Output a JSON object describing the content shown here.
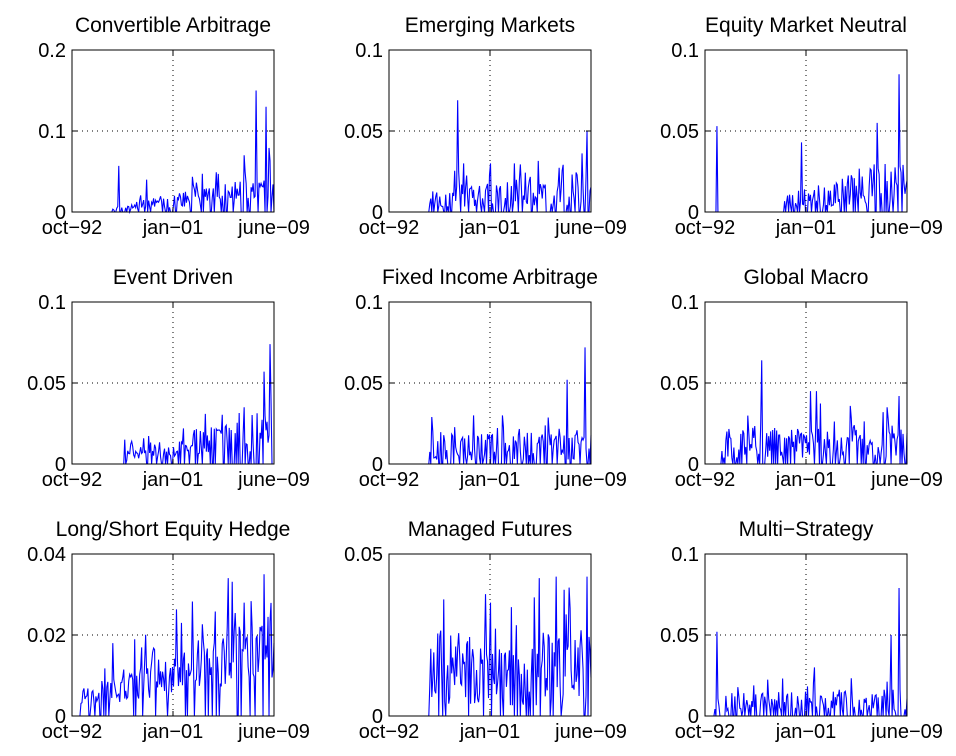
{
  "chart_data": [
    {
      "type": "line",
      "title": "Convertible Arbitrage",
      "xlabel": "",
      "ylabel": "",
      "xticks": [
        "oct−92",
        "jan−01",
        "june−09"
      ],
      "yticks": [
        "0",
        "0.1",
        "0.2"
      ],
      "ylim": [
        0,
        0.2
      ],
      "grid": true,
      "color": "#0000ff",
      "seed": 11,
      "start": 0.2,
      "level0": 0.005,
      "level1": 0.03,
      "amp": 0.6,
      "nzero": 0.35,
      "peaks": [
        [
          0.23,
          0.057
        ],
        [
          0.37,
          0.04
        ],
        [
          0.85,
          0.07
        ],
        [
          0.91,
          0.15
        ],
        [
          0.96,
          0.13
        ]
      ]
    },
    {
      "type": "line",
      "title": "Emerging Markets",
      "xlabel": "",
      "ylabel": "",
      "xticks": [
        "oct−92",
        "jan−01",
        "june−09"
      ],
      "yticks": [
        "0",
        "0.05",
        "0.1"
      ],
      "ylim": [
        0,
        0.1
      ],
      "grid": true,
      "color": "#0000ff",
      "seed": 23,
      "start": 0.2,
      "level0": 0.008,
      "level1": 0.015,
      "amp": 0.7,
      "nzero": 0.3,
      "peaks": [
        [
          0.34,
          0.069
        ],
        [
          0.37,
          0.03
        ],
        [
          0.5,
          0.03
        ],
        [
          0.62,
          0.03
        ],
        [
          0.98,
          0.05
        ]
      ]
    },
    {
      "type": "line",
      "title": "Equity Market Neutral",
      "xlabel": "",
      "ylabel": "",
      "xticks": [
        "oct−92",
        "jan−01",
        "june−09"
      ],
      "yticks": [
        "0",
        "0.05",
        "0.1"
      ],
      "ylim": [
        0,
        0.1
      ],
      "grid": true,
      "color": "#0000ff",
      "seed": 37,
      "start": 0.38,
      "level0": 0.006,
      "level1": 0.02,
      "amp": 0.7,
      "nzero": 0.3,
      "peaks": [
        [
          0.06,
          0.053
        ],
        [
          0.48,
          0.043
        ],
        [
          0.85,
          0.055
        ],
        [
          0.96,
          0.085
        ]
      ]
    },
    {
      "type": "line",
      "title": "Event Driven",
      "xlabel": "",
      "ylabel": "",
      "xticks": [
        "oct−92",
        "jan−01",
        "june−09"
      ],
      "yticks": [
        "0",
        "0.05",
        "0.1"
      ],
      "ylim": [
        0,
        0.1
      ],
      "grid": true,
      "color": "#0000ff",
      "seed": 41,
      "start": 0.26,
      "level0": 0.005,
      "level1": 0.02,
      "amp": 0.6,
      "nzero": 0.35,
      "peaks": [
        [
          0.26,
          0.015
        ],
        [
          0.55,
          0.022
        ],
        [
          0.85,
          0.035
        ],
        [
          0.95,
          0.057
        ],
        [
          0.98,
          0.074
        ]
      ]
    },
    {
      "type": "line",
      "title": "Fixed Income Arbitrage",
      "xlabel": "",
      "ylabel": "",
      "xticks": [
        "oct−92",
        "jan−01",
        "june−09"
      ],
      "yticks": [
        "0",
        "0.05",
        "0.1"
      ],
      "ylim": [
        0,
        0.1
      ],
      "grid": true,
      "color": "#0000ff",
      "seed": 53,
      "start": 0.2,
      "level0": 0.01,
      "level1": 0.012,
      "amp": 0.8,
      "nzero": 0.3,
      "peaks": [
        [
          0.21,
          0.029
        ],
        [
          0.42,
          0.03
        ],
        [
          0.56,
          0.03
        ],
        [
          0.88,
          0.052
        ],
        [
          0.97,
          0.072
        ]
      ]
    },
    {
      "type": "line",
      "title": "Global Macro",
      "xlabel": "",
      "ylabel": "",
      "xticks": [
        "oct−92",
        "jan−01",
        "june−09"
      ],
      "yticks": [
        "0",
        "0.05",
        "0.1"
      ],
      "ylim": [
        0,
        0.1
      ],
      "grid": true,
      "color": "#0000ff",
      "seed": 67,
      "start": 0.08,
      "level0": 0.012,
      "level1": 0.015,
      "amp": 0.7,
      "nzero": 0.25,
      "peaks": [
        [
          0.28,
          0.064
        ],
        [
          0.52,
          0.045
        ],
        [
          0.55,
          0.045
        ],
        [
          0.9,
          0.035
        ],
        [
          0.96,
          0.042
        ]
      ]
    },
    {
      "type": "line",
      "title": "Long/Short Equity Hedge",
      "xlabel": "",
      "ylabel": "",
      "xticks": [
        "oct−92",
        "jan−01",
        "june−09"
      ],
      "yticks": [
        "0",
        "0.02",
        "0.04"
      ],
      "ylim": [
        0,
        0.04
      ],
      "grid": true,
      "color": "#0000ff",
      "seed": 71,
      "start": 0.04,
      "level0": 0.004,
      "level1": 0.018,
      "amp": 0.5,
      "nzero": 0.12,
      "peaks": [
        [
          0.2,
          0.018
        ],
        [
          0.54,
          0.023
        ],
        [
          0.85,
          0.028
        ],
        [
          0.95,
          0.035
        ]
      ]
    },
    {
      "type": "line",
      "title": "Managed Futures",
      "xlabel": "",
      "ylabel": "",
      "xticks": [
        "oct−92",
        "jan−01",
        "june−09"
      ],
      "yticks": [
        "0",
        "0.05"
      ],
      "ylim": [
        0,
        0.05
      ],
      "grid": true,
      "color": "#0000ff",
      "seed": 83,
      "start": 0.2,
      "level0": 0.015,
      "level1": 0.015,
      "amp": 0.8,
      "nzero": 0.18,
      "peaks": [
        [
          0.27,
          0.036
        ],
        [
          0.5,
          0.035
        ],
        [
          0.83,
          0.043
        ],
        [
          0.98,
          0.043
        ]
      ]
    },
    {
      "type": "line",
      "title": "Multi−Strategy",
      "xlabel": "",
      "ylabel": "",
      "xticks": [
        "oct−92",
        "jan−01",
        "june−09"
      ],
      "yticks": [
        "0",
        "0.05",
        "0.1"
      ],
      "ylim": [
        0,
        0.1
      ],
      "grid": true,
      "color": "#0000ff",
      "seed": 97,
      "start": 0.04,
      "level0": 0.008,
      "level1": 0.01,
      "amp": 0.7,
      "nzero": 0.4,
      "peaks": [
        [
          0.06,
          0.052
        ],
        [
          0.54,
          0.03
        ],
        [
          0.92,
          0.05
        ],
        [
          0.96,
          0.079
        ]
      ]
    }
  ]
}
